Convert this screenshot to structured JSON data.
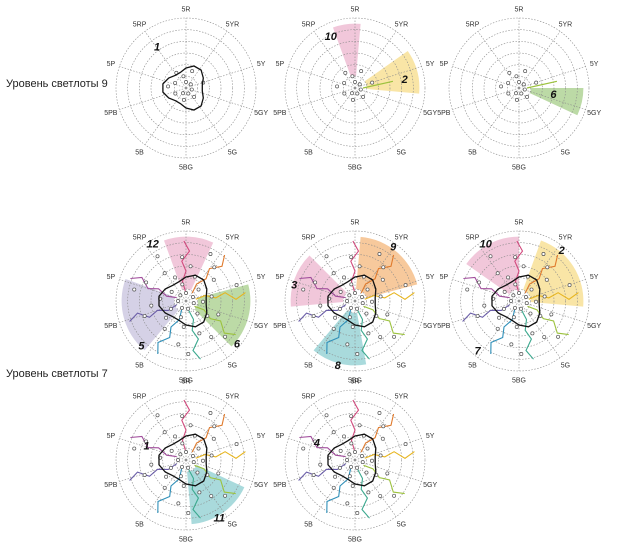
{
  "row_labels": [
    "Уровень светлоты 9",
    "Уровень светлоты 7"
  ],
  "hue_labels": [
    "5R",
    "5YR",
    "5Y",
    "5GY",
    "5G",
    "5BG",
    "5B",
    "5PB",
    "5P",
    "5RP"
  ],
  "colors": {
    "pink": "#e7a2c2",
    "yellow": "#f5d36a",
    "orange": "#f1a55a",
    "green": "#8fc16a",
    "teal": "#6fc1c4",
    "lavender": "#b9b2d6",
    "black": "#111111",
    "grid": "#8a8a8a",
    "marker": "#555555"
  },
  "panels": [
    {
      "id": "r1c1",
      "row": 1,
      "col": 1,
      "numbers": [
        {
          "text": "1",
          "angle": -35,
          "r": 0.72
        }
      ],
      "regions": [],
      "outline": true
    },
    {
      "id": "r1c2",
      "row": 1,
      "col": 2,
      "numbers": [
        {
          "text": "10",
          "angle": -25,
          "r": 0.82
        },
        {
          "text": "2",
          "angle": 80,
          "r": 0.72
        }
      ],
      "regions": [
        {
          "color": "pink",
          "a1": -20,
          "a2": 5
        },
        {
          "color": "yellow",
          "a1": 55,
          "a2": 95
        }
      ],
      "outline": false
    },
    {
      "id": "r1c3",
      "row": 1,
      "col": 3,
      "numbers": [
        {
          "text": "6",
          "angle": 100,
          "r": 0.5
        }
      ],
      "regions": [
        {
          "color": "green",
          "a1": 90,
          "a2": 115
        }
      ],
      "outline": false
    },
    {
      "id": "r2c1",
      "row": 2,
      "col": 1,
      "numbers": [
        {
          "text": "12",
          "angle": -30,
          "r": 0.95
        },
        {
          "text": "5",
          "angle": -135,
          "r": 0.9
        },
        {
          "text": "6",
          "angle": 130,
          "r": 0.95
        }
      ],
      "regions": [
        {
          "color": "pink",
          "a1": -20,
          "a2": 25
        },
        {
          "color": "green",
          "a1": 75,
          "a2": 135
        },
        {
          "color": "lavender",
          "a1": -140,
          "a2": -70
        }
      ],
      "outline": true
    },
    {
      "id": "r2c2",
      "row": 2,
      "col": 2,
      "numbers": [
        {
          "text": "9",
          "angle": 35,
          "r": 0.95
        },
        {
          "text": "3",
          "angle": -75,
          "r": 0.9
        },
        {
          "text": "8",
          "angle": -165,
          "r": 0.95
        }
      ],
      "regions": [
        {
          "color": "orange",
          "a1": 5,
          "a2": 75
        },
        {
          "color": "pink",
          "a1": -95,
          "a2": -45
        },
        {
          "color": "teal",
          "a1": -190,
          "a2": -140
        }
      ],
      "outline": true
    },
    {
      "id": "r2c3",
      "row": 2,
      "col": 3,
      "numbers": [
        {
          "text": "10",
          "angle": -30,
          "r": 0.95
        },
        {
          "text": "2",
          "angle": 40,
          "r": 0.95
        },
        {
          "text": "7",
          "angle": -140,
          "r": 0.92
        }
      ],
      "regions": [
        {
          "color": "pink",
          "a1": -55,
          "a2": 0
        },
        {
          "color": "yellow",
          "a1": 20,
          "a2": 95
        }
      ],
      "outline": true
    },
    {
      "id": "r3c1",
      "row": 3,
      "col": 1,
      "numbers": [
        {
          "text": "1",
          "angle": -70,
          "r": 0.6
        },
        {
          "text": "11",
          "angle": 150,
          "r": 0.95
        }
      ],
      "regions": [
        {
          "color": "teal",
          "a1": 115,
          "a2": 175
        }
      ],
      "outline": true
    },
    {
      "id": "r3c2",
      "row": 3,
      "col": 2,
      "numbers": [
        {
          "text": "4",
          "angle": -65,
          "r": 0.6
        }
      ],
      "regions": [],
      "outline": true
    }
  ]
}
